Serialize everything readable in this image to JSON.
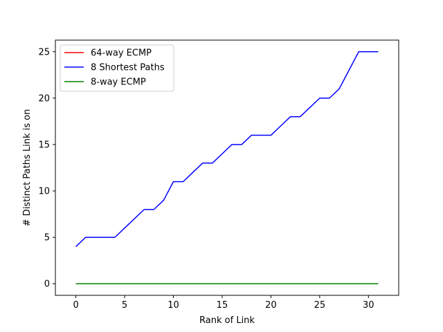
{
  "chart_data": {
    "type": "line",
    "title": "",
    "xlabel": "Rank of Link",
    "ylabel": "# Distinct Paths Link is on",
    "xlim": [
      -2.1,
      33.1
    ],
    "ylim": [
      -1.25,
      26.25
    ],
    "xticks": [
      0,
      5,
      10,
      15,
      20,
      25,
      30
    ],
    "yticks": [
      0,
      5,
      10,
      15,
      20,
      25
    ],
    "grid": false,
    "legend_position": "upper-left",
    "x": [
      0,
      1,
      2,
      3,
      4,
      5,
      6,
      7,
      8,
      9,
      10,
      11,
      12,
      13,
      14,
      15,
      16,
      17,
      18,
      19,
      20,
      21,
      22,
      23,
      24,
      25,
      26,
      27,
      28,
      29,
      30,
      31
    ],
    "series": [
      {
        "name": "64-way ECMP",
        "color": "#ff0000",
        "values": [
          0,
          0,
          0,
          0,
          0,
          0,
          0,
          0,
          0,
          0,
          0,
          0,
          0,
          0,
          0,
          0,
          0,
          0,
          0,
          0,
          0,
          0,
          0,
          0,
          0,
          0,
          0,
          0,
          0,
          0,
          0,
          0
        ]
      },
      {
        "name": "8 Shortest Paths",
        "color": "#0000ff",
        "values": [
          4,
          5,
          5,
          5,
          5,
          6,
          7,
          8,
          8,
          9,
          11,
          11,
          12,
          13,
          13,
          14,
          15,
          15,
          16,
          16,
          16,
          17,
          18,
          18,
          19,
          20,
          20,
          21,
          23,
          25,
          25,
          25
        ]
      },
      {
        "name": "8-way ECMP",
        "color": "#008000",
        "values": [
          0,
          0,
          0,
          0,
          0,
          0,
          0,
          0,
          0,
          0,
          0,
          0,
          0,
          0,
          0,
          0,
          0,
          0,
          0,
          0,
          0,
          0,
          0,
          0,
          0,
          0,
          0,
          0,
          0,
          0,
          0,
          0
        ]
      }
    ]
  }
}
